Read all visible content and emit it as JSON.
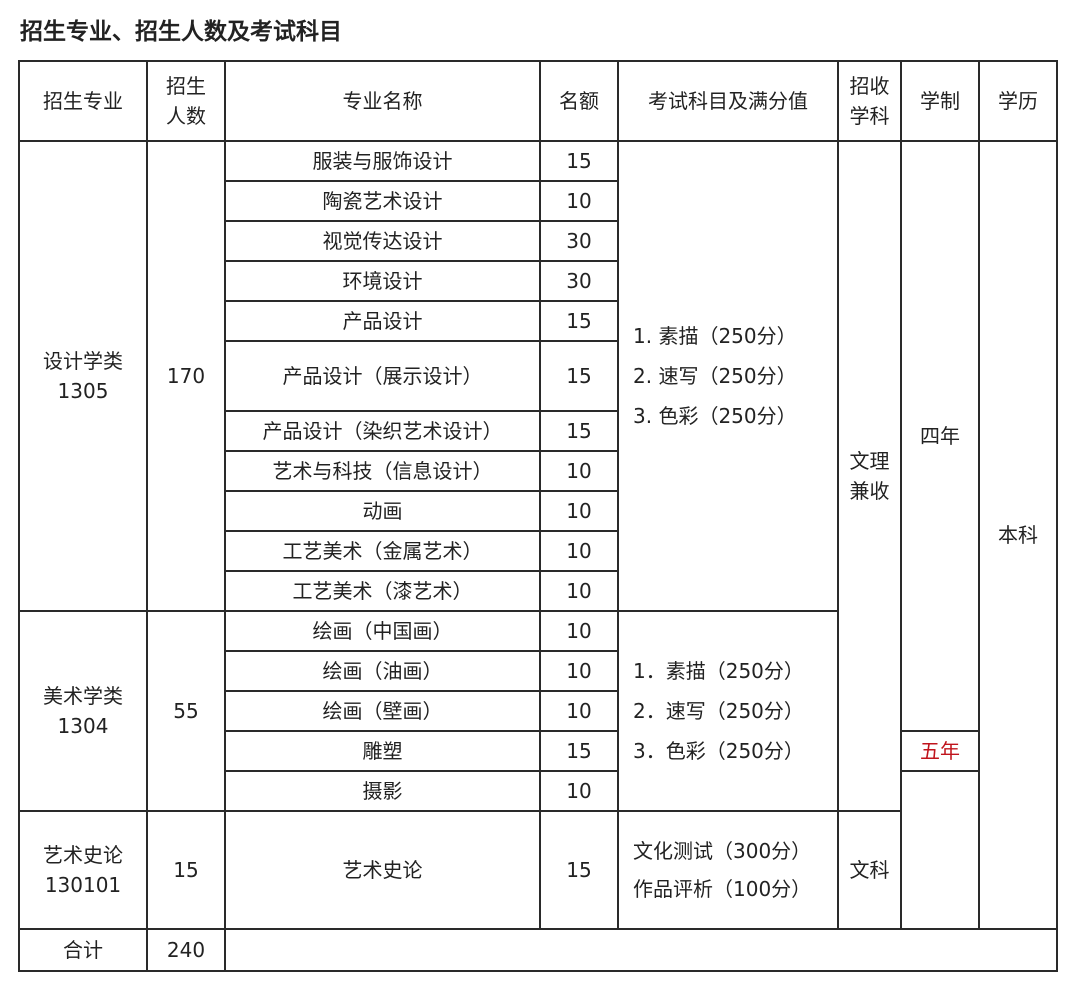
{
  "title": "招生专业、招生人数及考试科目",
  "headers": {
    "major_group": "招生专业",
    "count": "招生人数",
    "name": "专业名称",
    "quota": "名额",
    "exam": "考试科目及满分值",
    "subject": "招收学科",
    "duration": "学制",
    "degree": "学历"
  },
  "groups": [
    {
      "name": "设计学类",
      "code": "1305",
      "count": "170",
      "exam": [
        "1.  素描（250分）",
        "2.  速写（250分）",
        "3.  色彩（250分）"
      ],
      "majors": [
        {
          "name": "服装与服饰设计",
          "quota": "15"
        },
        {
          "name": "陶瓷艺术设计",
          "quota": "10"
        },
        {
          "name": "视觉传达设计",
          "quota": "30"
        },
        {
          "name": "环境设计",
          "quota": "30"
        },
        {
          "name": "产品设计",
          "quota": "15"
        },
        {
          "name": "产品设计（展示设计）",
          "quota": "15"
        },
        {
          "name": "产品设计（染织艺术设计）",
          "quota": "15"
        },
        {
          "name": "艺术与科技（信息设计）",
          "quota": "10"
        },
        {
          "name": "动画",
          "quota": "10"
        },
        {
          "name": "工艺美术（金属艺术）",
          "quota": "10"
        },
        {
          "name": "工艺美术（漆艺术）",
          "quota": "10"
        }
      ]
    },
    {
      "name": "美术学类",
      "code": "1304",
      "count": "55",
      "exam": [
        "1．素描（250分）",
        "2．速写（250分）",
        "3．色彩（250分）"
      ],
      "majors": [
        {
          "name": "绘画（中国画）",
          "quota": "10"
        },
        {
          "name": "绘画（油画）",
          "quota": "10"
        },
        {
          "name": "绘画（壁画）",
          "quota": "10"
        },
        {
          "name": "雕塑",
          "quota": "15"
        },
        {
          "name": "摄影",
          "quota": "10"
        }
      ]
    },
    {
      "name": "艺术史论",
      "code": "130101",
      "count": "15",
      "exam": [
        "文化测试（300分）",
        "作品评析（100分）"
      ],
      "majors": [
        {
          "name": "艺术史论",
          "quota": "15"
        }
      ]
    }
  ],
  "subjects": {
    "both": "文理兼收",
    "arts": "文科"
  },
  "duration": {
    "four": "四年",
    "five": "五年",
    "five_color": "#c0141c"
  },
  "degree": "本科",
  "total": {
    "label": "合计",
    "value": "240"
  }
}
